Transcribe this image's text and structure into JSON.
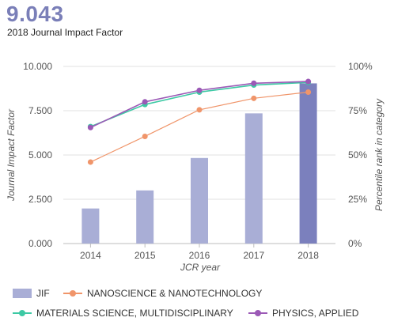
{
  "header": {
    "value": "9.043",
    "subtitle": "2018 Journal Impact Factor"
  },
  "chart_data": {
    "type": "bar",
    "xlabel": "JCR year",
    "ylabel_left": "Journal Impact Factor",
    "ylabel_right": "Percentile rank in category",
    "categories": [
      "2014",
      "2015",
      "2016",
      "2017",
      "2018"
    ],
    "ylim_left": [
      0,
      10
    ],
    "ylim_right": [
      0,
      100
    ],
    "y_ticks_left": [
      "0.000",
      "2.500",
      "5.000",
      "7.500",
      "10.000"
    ],
    "y_ticks_right": [
      "0%",
      "25%",
      "50%",
      "75%",
      "100%"
    ],
    "grid": true,
    "bars": {
      "name": "JIF",
      "values": [
        1.98,
        3.0,
        4.83,
        7.35,
        9.043
      ],
      "color": "#a9aed6",
      "highlight_color": "#7b80bd"
    },
    "lines": [
      {
        "name": "NANOSCIENCE & NANOTECHNOLOGY",
        "color": "#f0956a",
        "values": [
          46,
          60.5,
          75.5,
          82,
          85.5
        ]
      },
      {
        "name": "MATERIALS SCIENCE, MULTIDISCIPLINARY",
        "color": "#3dc9a4",
        "values": [
          66,
          78.5,
          85.5,
          89.5,
          91
        ]
      },
      {
        "name": "PHYSICS, APPLIED",
        "color": "#9b59b6",
        "values": [
          65.5,
          80,
          86.5,
          90.5,
          91.5
        ]
      }
    ],
    "legend_position": "bottom"
  }
}
